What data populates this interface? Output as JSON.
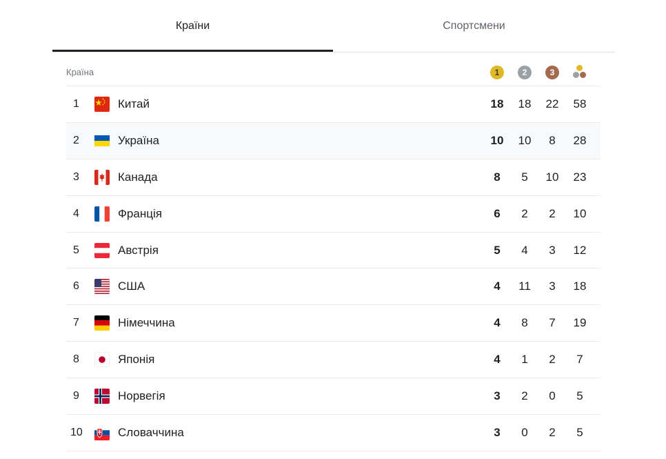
{
  "tabs": [
    {
      "label": "Країни"
    },
    {
      "label": "Спортсмени"
    }
  ],
  "table": {
    "header_label": "Країна",
    "medal_icons": {
      "gold": "1",
      "silver": "2",
      "bronze": "3"
    },
    "colors": {
      "gold": "#e0b92b",
      "silver": "#9aa0a6",
      "bronze": "#a46a4f"
    },
    "rows": [
      {
        "rank": "1",
        "country": "Китай",
        "flag": "china-flag-icon",
        "gold": "18",
        "silver": "18",
        "bronze": "22",
        "total": "58"
      },
      {
        "rank": "2",
        "country": "Україна",
        "flag": "ukraine-flag-icon",
        "gold": "10",
        "silver": "10",
        "bronze": "8",
        "total": "28"
      },
      {
        "rank": "3",
        "country": "Канада",
        "flag": "canada-flag-icon",
        "gold": "8",
        "silver": "5",
        "bronze": "10",
        "total": "23"
      },
      {
        "rank": "4",
        "country": "Франція",
        "flag": "france-flag-icon",
        "gold": "6",
        "silver": "2",
        "bronze": "2",
        "total": "10"
      },
      {
        "rank": "5",
        "country": "Австрія",
        "flag": "austria-flag-icon",
        "gold": "5",
        "silver": "4",
        "bronze": "3",
        "total": "12"
      },
      {
        "rank": "6",
        "country": "США",
        "flag": "usa-flag-icon",
        "gold": "4",
        "silver": "11",
        "bronze": "3",
        "total": "18"
      },
      {
        "rank": "7",
        "country": "Німеччина",
        "flag": "germany-flag-icon",
        "gold": "4",
        "silver": "8",
        "bronze": "7",
        "total": "19"
      },
      {
        "rank": "8",
        "country": "Японія",
        "flag": "japan-flag-icon",
        "gold": "4",
        "silver": "1",
        "bronze": "2",
        "total": "7"
      },
      {
        "rank": "9",
        "country": "Норвегія",
        "flag": "norway-flag-icon",
        "gold": "3",
        "silver": "2",
        "bronze": "0",
        "total": "5"
      },
      {
        "rank": "10",
        "country": "Словаччина",
        "flag": "slovakia-flag-icon",
        "gold": "3",
        "silver": "0",
        "bronze": "2",
        "total": "5"
      }
    ]
  }
}
